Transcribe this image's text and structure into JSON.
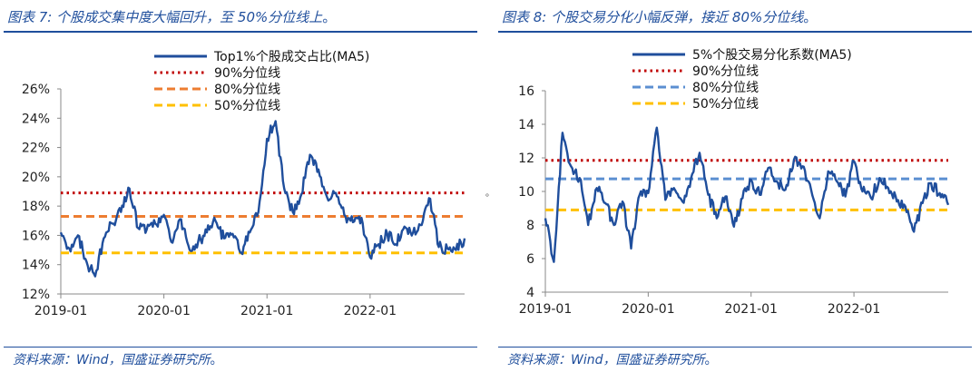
{
  "left": {
    "figure_no": "图表 7:",
    "title": "个股成交集中度大幅回升，至 50%分位线上",
    "source": "资料来源：Wind，国盛证券研究所",
    "chart_data": {
      "type": "line",
      "x_tick_labels": [
        "2019-01",
        "2020-01",
        "2021-01",
        "2022-01"
      ],
      "x_range": [
        "2019-01",
        "2022-12"
      ],
      "y_tick_labels": [
        "12%",
        "14%",
        "16%",
        "18%",
        "20%",
        "22%",
        "24%",
        "26%"
      ],
      "ylim": [
        12,
        26
      ],
      "y_unit": "%",
      "legend_position": "top-center",
      "series": [
        {
          "name": "Top1%个股成交占比(MA5)",
          "color": "#1f4e9c",
          "style": "solid",
          "points": [
            [
              "2019-01",
              16.2
            ],
            [
              "2019-02",
              15.1
            ],
            [
              "2019-03",
              16.0
            ],
            [
              "2019-04",
              14.2
            ],
            [
              "2019-05",
              13.2
            ],
            [
              "2019-06",
              15.8
            ],
            [
              "2019-07",
              16.8
            ],
            [
              "2019-08",
              17.6
            ],
            [
              "2019-09",
              19.2
            ],
            [
              "2019-10",
              16.5
            ],
            [
              "2019-11",
              16.4
            ],
            [
              "2019-12",
              16.8
            ],
            [
              "2020-01",
              17.4
            ],
            [
              "2020-02",
              15.5
            ],
            [
              "2020-03",
              17.1
            ],
            [
              "2020-04",
              15.0
            ],
            [
              "2020-05",
              15.6
            ],
            [
              "2020-06",
              16.2
            ],
            [
              "2020-07",
              17.0
            ],
            [
              "2020-08",
              15.8
            ],
            [
              "2020-09",
              16.1
            ],
            [
              "2020-10",
              14.8
            ],
            [
              "2020-11",
              16.2
            ],
            [
              "2020-12",
              17.6
            ],
            [
              "2021-01",
              22.6
            ],
            [
              "2021-02",
              23.8
            ],
            [
              "2021-03",
              19.2
            ],
            [
              "2021-04",
              17.6
            ],
            [
              "2021-05",
              18.8
            ],
            [
              "2021-06",
              21.5
            ],
            [
              "2021-07",
              20.5
            ],
            [
              "2021-08",
              18.6
            ],
            [
              "2021-09",
              18.9
            ],
            [
              "2021-10",
              17.4
            ],
            [
              "2021-11",
              16.9
            ],
            [
              "2021-12",
              17.2
            ],
            [
              "2022-01",
              14.5
            ],
            [
              "2022-02",
              15.4
            ],
            [
              "2022-03",
              16.1
            ],
            [
              "2022-04",
              15.4
            ],
            [
              "2022-05",
              16.6
            ],
            [
              "2022-06",
              16.2
            ],
            [
              "2022-07",
              16.7
            ],
            [
              "2022-08",
              18.5
            ],
            [
              "2022-09",
              15.2
            ],
            [
              "2022-10",
              15.1
            ],
            [
              "2022-11",
              15.0
            ],
            [
              "2022-12",
              15.8
            ]
          ]
        },
        {
          "name": "90%分位线",
          "color": "#c00000",
          "style": "dotted",
          "value": 18.9
        },
        {
          "name": "80%分位线",
          "color": "#ed7d31",
          "style": "dashed",
          "value": 17.3
        },
        {
          "name": "50%分位线",
          "color": "#ffc000",
          "style": "dashed",
          "value": 14.8
        }
      ]
    }
  },
  "right": {
    "figure_no": "图表 8:",
    "title": "个股交易分化小幅反弹，接近 80%分位线",
    "source": "资料来源：Wind，国盛证券研究所",
    "chart_data": {
      "type": "line",
      "x_tick_labels": [
        "2019-01",
        "2020-01",
        "2021-01",
        "2022-01"
      ],
      "x_range": [
        "2019-01",
        "2022-12"
      ],
      "y_tick_labels": [
        "4",
        "6",
        "8",
        "10",
        "12",
        "14",
        "16"
      ],
      "ylim": [
        4,
        16
      ],
      "legend_position": "top-center",
      "series": [
        {
          "name": "5%个股交易分化系数(MA5)",
          "color": "#1f4e9c",
          "style": "solid",
          "points": [
            [
              "2019-01",
              8.4
            ],
            [
              "2019-02",
              5.8
            ],
            [
              "2019-03",
              13.5
            ],
            [
              "2019-04",
              11.5
            ],
            [
              "2019-05",
              10.8
            ],
            [
              "2019-06",
              8.0
            ],
            [
              "2019-07",
              10.2
            ],
            [
              "2019-08",
              9.3
            ],
            [
              "2019-09",
              8.0
            ],
            [
              "2019-10",
              9.4
            ],
            [
              "2019-11",
              6.6
            ],
            [
              "2019-12",
              9.8
            ],
            [
              "2020-01",
              9.9
            ],
            [
              "2020-02",
              13.8
            ],
            [
              "2020-03",
              9.5
            ],
            [
              "2020-04",
              10.2
            ],
            [
              "2020-05",
              9.4
            ],
            [
              "2020-06",
              10.8
            ],
            [
              "2020-07",
              12.3
            ],
            [
              "2020-08",
              9.8
            ],
            [
              "2020-09",
              8.4
            ],
            [
              "2020-10",
              9.7
            ],
            [
              "2020-11",
              7.9
            ],
            [
              "2020-12",
              9.6
            ],
            [
              "2021-01",
              10.7
            ],
            [
              "2021-02",
              9.8
            ],
            [
              "2021-03",
              11.4
            ],
            [
              "2021-04",
              10.6
            ],
            [
              "2021-05",
              10.1
            ],
            [
              "2021-06",
              11.9
            ],
            [
              "2021-07",
              11.5
            ],
            [
              "2021-08",
              10.1
            ],
            [
              "2021-09",
              8.4
            ],
            [
              "2021-10",
              11.2
            ],
            [
              "2021-11",
              10.6
            ],
            [
              "2021-12",
              9.7
            ],
            [
              "2022-01",
              11.8
            ],
            [
              "2022-02",
              10.0
            ],
            [
              "2022-03",
              9.6
            ],
            [
              "2022-04",
              10.8
            ],
            [
              "2022-05",
              10.2
            ],
            [
              "2022-06",
              9.4
            ],
            [
              "2022-07",
              9.1
            ],
            [
              "2022-08",
              7.6
            ],
            [
              "2022-09",
              9.3
            ],
            [
              "2022-10",
              10.5
            ],
            [
              "2022-11",
              9.9
            ],
            [
              "2022-12",
              9.2
            ]
          ]
        },
        {
          "name": "90%分位线",
          "color": "#c00000",
          "style": "dotted",
          "value": 11.85
        },
        {
          "name": "80%分位线",
          "color": "#5b8fd1",
          "style": "dashed",
          "value": 10.75
        },
        {
          "name": "50%分位线",
          "color": "#ffc000",
          "style": "dashed",
          "value": 8.9
        }
      ]
    }
  }
}
